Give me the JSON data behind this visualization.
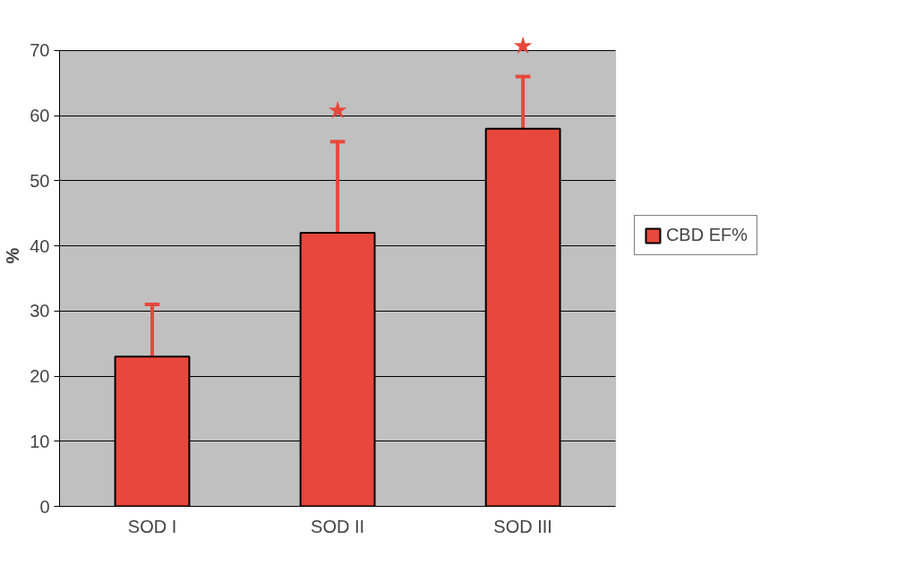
{
  "chart_data": {
    "type": "bar",
    "ylabel": "%",
    "categories": [
      "SOD I",
      "SOD II",
      "SOD III"
    ],
    "series": [
      {
        "name": "CBD EF%",
        "color": "#e8473c",
        "values": [
          23,
          42,
          58
        ],
        "errors": [
          [
            23,
            31
          ],
          [
            42,
            56
          ],
          [
            58,
            66
          ]
        ]
      }
    ],
    "ylim": [
      0,
      70
    ],
    "yticks": [
      0,
      10,
      20,
      30,
      40,
      50,
      60,
      70
    ],
    "grid": "y",
    "legend": "right",
    "annotations": [
      "★",
      "★"
    ]
  }
}
